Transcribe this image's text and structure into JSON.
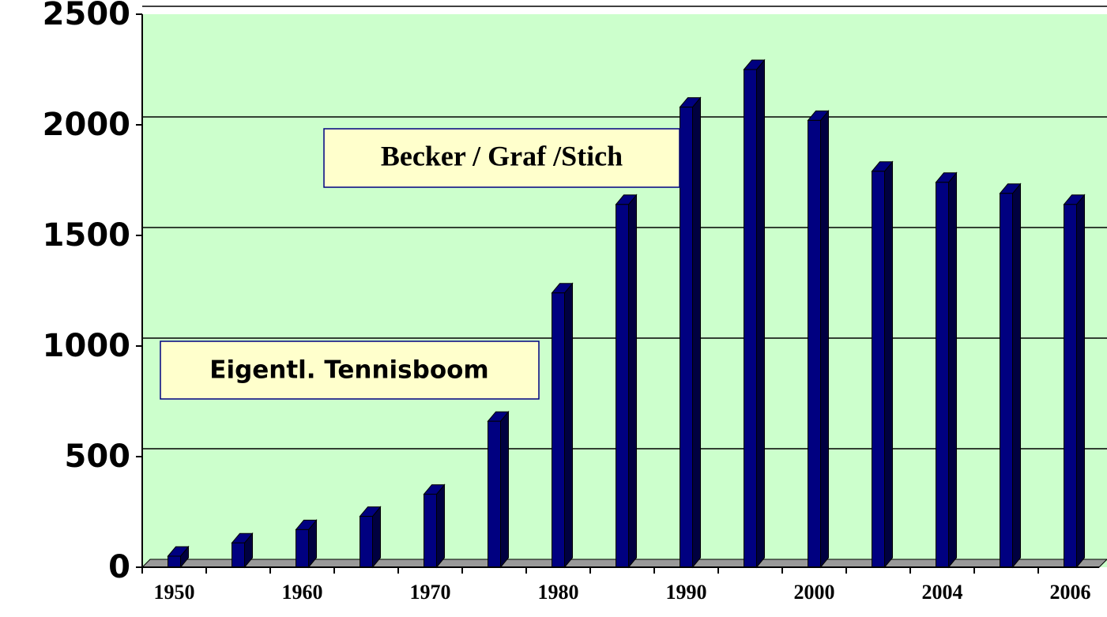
{
  "chart_data": {
    "type": "bar3d",
    "categories": [
      "1950",
      null,
      "1960",
      null,
      "1970",
      null,
      "1980",
      null,
      "1990",
      null,
      "2000",
      null,
      "2004",
      null,
      "2006"
    ],
    "values": [
      50,
      110,
      170,
      230,
      330,
      660,
      1240,
      1640,
      2080,
      2250,
      2020,
      1790,
      1740,
      1690,
      1640
    ],
    "color": "#000080",
    "ylim": [
      0,
      2500
    ],
    "yticks": [
      0,
      500,
      1000,
      1500,
      2000,
      2500
    ],
    "grid": true,
    "annotations": [
      "Becker / Graf /Stich",
      "Eigentl. Tennisboom"
    ]
  }
}
